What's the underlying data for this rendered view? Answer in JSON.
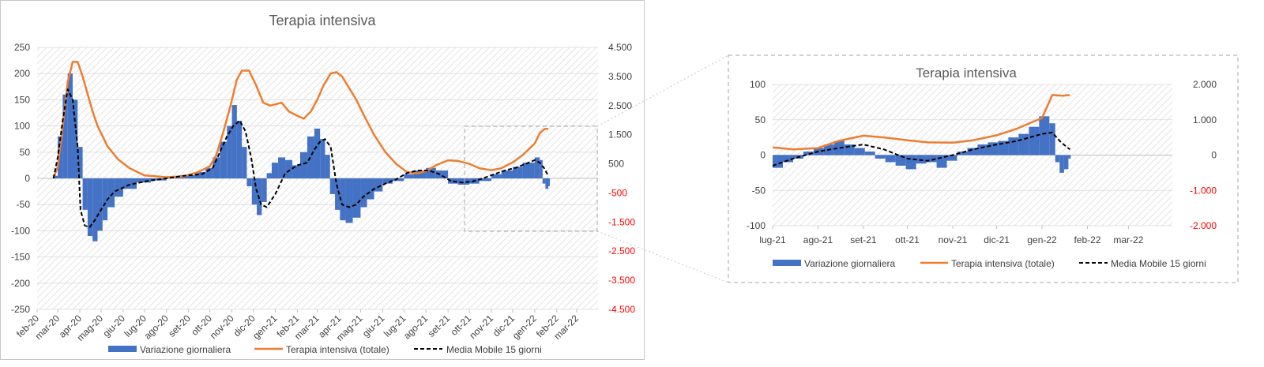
{
  "colors": {
    "bars": "#4472c4",
    "total": "#ed7d31",
    "moving_avg": "#000000",
    "negative_secondary_tick": "#ff0000",
    "grid": "#d9d9d9",
    "hatch": "#d9d9d9",
    "frame": "#bfbfbf",
    "zoom_box": "#a6a6a6"
  },
  "chart_data": [
    {
      "type": "bar",
      "title": "Terapia intensiva",
      "grid": true,
      "legend_placement": "bottom",
      "x_labels": [
        "feb-20",
        "mar-20",
        "apr-20",
        "mag-20",
        "giu-20",
        "lug-20",
        "ago-20",
        "set-20",
        "ott-20",
        "nov-20",
        "dic-20",
        "gen-21",
        "feb-21",
        "mar-21",
        "apr-21",
        "mag-21",
        "giu-21",
        "lug-21",
        "ago-21",
        "set-21",
        "ott-21",
        "nov-21",
        "dic-21",
        "gen-22",
        "feb-22",
        "mar-22"
      ],
      "y_ticks": [
        "250",
        "200",
        "150",
        "100",
        "50",
        "0",
        "-50",
        "-100",
        "-150",
        "-200",
        "-250"
      ],
      "ylim": [
        -250,
        250
      ],
      "y2_ticks": [
        "4.500",
        "3.500",
        "2.500",
        "1.500",
        "500",
        "-500",
        "-1.500",
        "-2.500",
        "-3.500",
        "-4.500"
      ],
      "y2lim": [
        -4500,
        4500
      ],
      "series": [
        {
          "name": "Variazione giornaliera",
          "kind": "bar",
          "axis": "primary",
          "x": [
            "2020-02-24",
            "2020-03-01",
            "2020-03-08",
            "2020-03-15",
            "2020-03-22",
            "2020-03-29",
            "2020-04-05",
            "2020-04-12",
            "2020-04-19",
            "2020-04-26",
            "2020-05-03",
            "2020-05-10",
            "2020-05-20",
            "2020-06-01",
            "2020-06-20",
            "2020-07-10",
            "2020-08-01",
            "2020-08-20",
            "2020-09-10",
            "2020-09-25",
            "2020-10-05",
            "2020-10-15",
            "2020-10-25",
            "2020-11-01",
            "2020-11-08",
            "2020-11-15",
            "2020-11-22",
            "2020-11-29",
            "2020-12-06",
            "2020-12-13",
            "2020-12-20",
            "2020-12-27",
            "2021-01-05",
            "2021-01-15",
            "2021-01-25",
            "2021-02-05",
            "2021-02-15",
            "2021-02-25",
            "2021-03-05",
            "2021-03-12",
            "2021-03-19",
            "2021-03-26",
            "2021-04-02",
            "2021-04-10",
            "2021-04-20",
            "2021-05-01",
            "2021-05-10",
            "2021-05-20",
            "2021-06-01",
            "2021-06-15",
            "2021-07-01",
            "2021-07-15",
            "2021-08-01",
            "2021-08-15",
            "2021-09-01",
            "2021-09-15",
            "2021-10-01",
            "2021-10-15",
            "2021-11-01",
            "2021-11-15",
            "2021-12-01",
            "2021-12-15",
            "2022-01-01",
            "2022-01-08",
            "2022-01-12",
            "2022-01-16",
            "2022-01-20"
          ],
          "values": [
            5,
            80,
            160,
            200,
            150,
            60,
            -60,
            -110,
            -120,
            -100,
            -80,
            -55,
            -35,
            -20,
            -8,
            -4,
            2,
            6,
            12,
            20,
            40,
            70,
            100,
            140,
            110,
            60,
            -15,
            -50,
            -70,
            -45,
            10,
            30,
            40,
            35,
            25,
            50,
            80,
            95,
            75,
            45,
            -30,
            -60,
            -80,
            -85,
            -75,
            -55,
            -40,
            -25,
            -10,
            -5,
            8,
            15,
            20,
            15,
            -10,
            -12,
            -10,
            -5,
            8,
            15,
            22,
            30,
            40,
            35,
            -10,
            -20,
            -15
          ]
        },
        {
          "name": "Terapia intensiva (totale)",
          "kind": "line",
          "axis": "secondary",
          "x": [
            "2020-02-24",
            "2020-03-01",
            "2020-03-08",
            "2020-03-15",
            "2020-03-22",
            "2020-03-29",
            "2020-04-05",
            "2020-04-12",
            "2020-04-19",
            "2020-04-26",
            "2020-05-10",
            "2020-05-25",
            "2020-06-10",
            "2020-07-01",
            "2020-08-01",
            "2020-08-25",
            "2020-09-15",
            "2020-10-01",
            "2020-10-10",
            "2020-10-20",
            "2020-10-30",
            "2020-11-08",
            "2020-11-15",
            "2020-11-25",
            "2020-12-05",
            "2020-12-15",
            "2020-12-25",
            "2021-01-10",
            "2021-01-20",
            "2021-02-01",
            "2021-02-10",
            "2021-02-20",
            "2021-03-01",
            "2021-03-10",
            "2021-03-20",
            "2021-03-28",
            "2021-04-05",
            "2021-04-15",
            "2021-04-25",
            "2021-05-05",
            "2021-05-20",
            "2021-06-05",
            "2021-06-20",
            "2021-07-05",
            "2021-07-20",
            "2021-08-01",
            "2021-08-15",
            "2021-09-01",
            "2021-09-15",
            "2021-10-01",
            "2021-10-15",
            "2021-11-01",
            "2021-11-15",
            "2021-12-01",
            "2021-12-15",
            "2022-01-01",
            "2022-01-08",
            "2022-01-15",
            "2022-01-20"
          ],
          "values": [
            0,
            400,
            1800,
            3300,
            4000,
            4000,
            3500,
            2900,
            2300,
            1800,
            1100,
            650,
            350,
            100,
            40,
            70,
            220,
            420,
            800,
            1600,
            2500,
            3400,
            3700,
            3700,
            3200,
            2600,
            2500,
            2600,
            2300,
            2150,
            2050,
            2300,
            2700,
            3200,
            3600,
            3650,
            3500,
            3100,
            2700,
            2200,
            1500,
            900,
            500,
            220,
            170,
            250,
            450,
            620,
            600,
            500,
            350,
            280,
            350,
            550,
            800,
            1200,
            1550,
            1700,
            1700
          ]
        },
        {
          "name": "Media Mobile 15 giorni",
          "kind": "line",
          "style": "dashed",
          "axis": "primary",
          "x": [
            "2020-02-24",
            "2020-03-01",
            "2020-03-08",
            "2020-03-15",
            "2020-03-22",
            "2020-03-29",
            "2020-04-02",
            "2020-04-08",
            "2020-04-15",
            "2020-04-22",
            "2020-05-01",
            "2020-05-10",
            "2020-05-20",
            "2020-06-10",
            "2020-07-05",
            "2020-08-01",
            "2020-08-25",
            "2020-09-20",
            "2020-10-05",
            "2020-10-15",
            "2020-10-25",
            "2020-11-03",
            "2020-11-12",
            "2020-11-20",
            "2020-11-28",
            "2020-12-05",
            "2020-12-12",
            "2020-12-20",
            "2021-01-01",
            "2021-01-15",
            "2021-02-01",
            "2021-02-15",
            "2021-02-25",
            "2021-03-05",
            "2021-03-12",
            "2021-03-20",
            "2021-03-28",
            "2021-04-05",
            "2021-04-15",
            "2021-04-25",
            "2021-05-05",
            "2021-05-20",
            "2021-06-05",
            "2021-06-20",
            "2021-07-05",
            "2021-07-20",
            "2021-08-05",
            "2021-08-20",
            "2021-09-05",
            "2021-09-20",
            "2021-10-05",
            "2021-10-20",
            "2021-11-05",
            "2021-11-20",
            "2021-12-05",
            "2021-12-20",
            "2022-01-01",
            "2022-01-08",
            "2022-01-14",
            "2022-01-20"
          ],
          "values": [
            0,
            40,
            110,
            170,
            150,
            60,
            -60,
            -90,
            -93,
            -80,
            -60,
            -40,
            -25,
            -12,
            -5,
            0,
            5,
            8,
            20,
            50,
            80,
            100,
            110,
            90,
            40,
            -20,
            -50,
            -55,
            -30,
            10,
            25,
            30,
            55,
            70,
            75,
            60,
            -10,
            -50,
            -55,
            -50,
            -35,
            -20,
            -10,
            -2,
            10,
            15,
            15,
            8,
            -5,
            -8,
            -6,
            0,
            8,
            15,
            20,
            28,
            35,
            30,
            20,
            5
          ]
        }
      ]
    },
    {
      "type": "bar",
      "title": "Terapia intensiva",
      "grid": true,
      "legend_placement": "bottom",
      "x_labels": [
        "lug-21",
        "ago-21",
        "set-21",
        "ott-21",
        "nov-21",
        "dic-21",
        "gen-22",
        "feb-22",
        "mar-22"
      ],
      "y_ticks": [
        "100",
        "50",
        "0",
        "-50",
        "-100"
      ],
      "ylim": [
        -100,
        100
      ],
      "y2_ticks": [
        "2.000",
        "1.000",
        "0",
        "-1.000",
        "-2.000"
      ],
      "y2lim": [
        -2000,
        2000
      ],
      "series": [
        {
          "name": "Variazione giornaliera",
          "kind": "bar",
          "axis": "primary",
          "x": [
            "2021-07-01",
            "2021-07-08",
            "2021-07-15",
            "2021-07-22",
            "2021-07-29",
            "2021-08-05",
            "2021-08-12",
            "2021-08-19",
            "2021-08-26",
            "2021-09-02",
            "2021-09-09",
            "2021-09-16",
            "2021-09-23",
            "2021-09-30",
            "2021-10-07",
            "2021-10-14",
            "2021-10-21",
            "2021-10-28",
            "2021-11-04",
            "2021-11-11",
            "2021-11-18",
            "2021-11-25",
            "2021-12-02",
            "2021-12-09",
            "2021-12-16",
            "2021-12-23",
            "2021-12-30",
            "2022-01-06",
            "2022-01-10",
            "2022-01-13",
            "2022-01-16",
            "2022-01-19"
          ],
          "values": [
            -18,
            -10,
            -5,
            5,
            10,
            15,
            20,
            15,
            10,
            5,
            -5,
            -10,
            -15,
            -20,
            -12,
            -10,
            -18,
            -8,
            5,
            10,
            15,
            18,
            20,
            25,
            30,
            40,
            55,
            45,
            -10,
            -25,
            -20,
            -5
          ]
        },
        {
          "name": "Terapia intensiva (totale)",
          "kind": "line",
          "axis": "secondary",
          "x": [
            "2021-07-01",
            "2021-07-15",
            "2021-08-01",
            "2021-08-15",
            "2021-09-01",
            "2021-09-15",
            "2021-10-01",
            "2021-10-15",
            "2021-11-01",
            "2021-11-15",
            "2021-12-01",
            "2021-12-15",
            "2022-01-01",
            "2022-01-08",
            "2022-01-15",
            "2022-01-20"
          ],
          "values": [
            220,
            160,
            200,
            400,
            550,
            500,
            420,
            360,
            350,
            420,
            560,
            750,
            1050,
            1700,
            1680,
            1700
          ]
        },
        {
          "name": "Media Mobile 15 giorni",
          "kind": "line",
          "style": "dashed",
          "axis": "primary",
          "x": [
            "2021-07-01",
            "2021-07-15",
            "2021-08-01",
            "2021-08-15",
            "2021-09-01",
            "2021-09-15",
            "2021-10-01",
            "2021-10-15",
            "2021-11-01",
            "2021-11-15",
            "2021-12-01",
            "2021-12-15",
            "2022-01-01",
            "2022-01-08",
            "2022-01-14",
            "2022-01-20"
          ],
          "values": [
            -15,
            -5,
            5,
            10,
            15,
            8,
            -5,
            -8,
            0,
            8,
            15,
            20,
            30,
            32,
            18,
            8
          ]
        }
      ]
    }
  ]
}
